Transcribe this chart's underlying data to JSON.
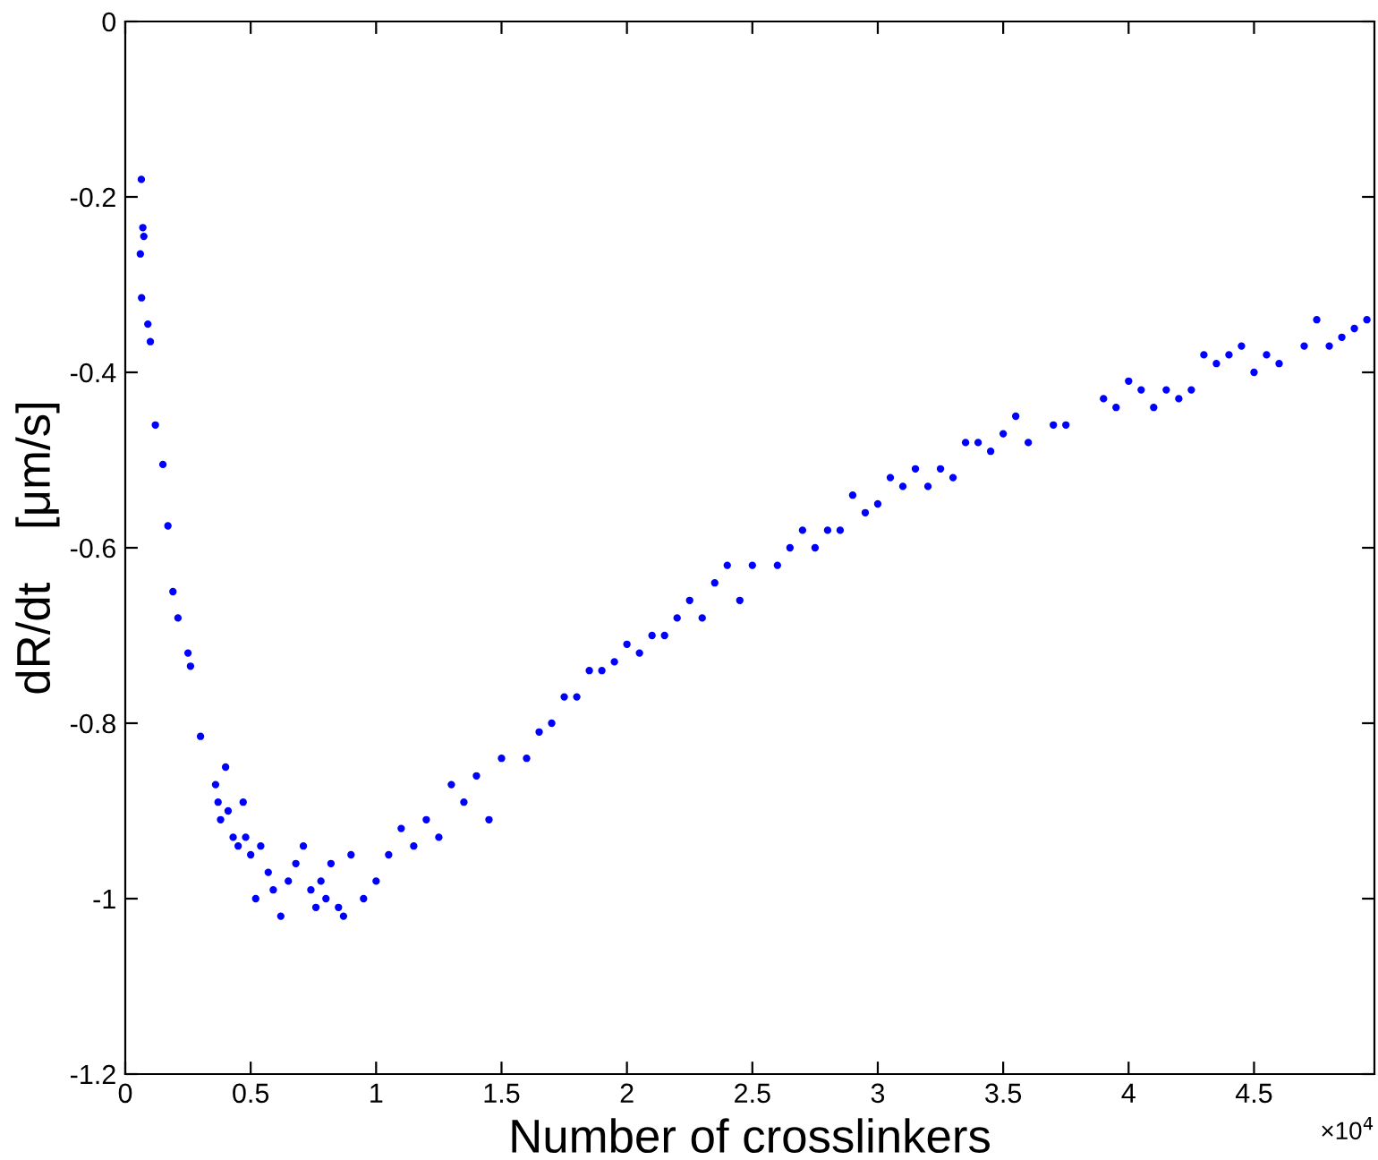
{
  "chart_data": {
    "type": "scatter",
    "xlabel": "Number of crosslinkers",
    "ylabel": "dR/dt    [μm/s]",
    "annotations": [
      "×10$^{4}$"
    ],
    "marker": "circle",
    "grid": false,
    "legend": false,
    "xlim": [
      0,
      4.98
    ],
    "ylim": [
      -1.2,
      0
    ],
    "xticks": [
      0,
      0.5,
      1,
      1.5,
      2,
      2.5,
      3,
      3.5,
      4,
      4.5
    ],
    "yticks": [
      -1.2,
      -1,
      -0.8,
      -0.6,
      -0.4,
      -0.2,
      0
    ],
    "series": [
      {
        "color": "#0000ff",
        "x": [
          0.064,
          0.07,
          0.074,
          0.06,
          0.065,
          0.09,
          0.1,
          0.12,
          0.15,
          0.17,
          0.19,
          0.21,
          0.25,
          0.26,
          0.3,
          0.36,
          0.37,
          0.38,
          0.4,
          0.41,
          0.43,
          0.45,
          0.47,
          0.48,
          0.5,
          0.52,
          0.54,
          0.57,
          0.59,
          0.62,
          0.65,
          0.68,
          0.71,
          0.74,
          0.76,
          0.78,
          0.8,
          0.82,
          0.85,
          0.87,
          0.9,
          0.95,
          1.0,
          1.05,
          1.1,
          1.15,
          1.2,
          1.25,
          1.3,
          1.35,
          1.4,
          1.45,
          1.5,
          1.6,
          1.65,
          1.7,
          1.75,
          1.8,
          1.85,
          1.9,
          1.95,
          2.0,
          2.05,
          2.1,
          2.15,
          2.2,
          2.25,
          2.3,
          2.35,
          2.4,
          2.45,
          2.5,
          2.6,
          2.65,
          2.7,
          2.75,
          2.8,
          2.85,
          2.9,
          2.95,
          3.0,
          3.05,
          3.1,
          3.15,
          3.2,
          3.25,
          3.3,
          3.35,
          3.4,
          3.45,
          3.5,
          3.55,
          3.6,
          3.7,
          3.75,
          3.9,
          3.95,
          4.0,
          4.05,
          4.1,
          4.15,
          4.2,
          4.25,
          4.3,
          4.35,
          4.4,
          4.45,
          4.5,
          4.55,
          4.6,
          4.7,
          4.75,
          4.8,
          4.85,
          4.9,
          4.95
        ],
        "values": [
          -0.18,
          -0.235,
          -0.245,
          -0.265,
          -0.315,
          -0.345,
          -0.365,
          -0.46,
          -0.505,
          -0.575,
          -0.65,
          -0.68,
          -0.72,
          -0.735,
          -0.815,
          -0.87,
          -0.89,
          -0.91,
          -0.85,
          -0.9,
          -0.93,
          -0.94,
          -0.89,
          -0.93,
          -0.95,
          -1.0,
          -0.94,
          -0.97,
          -0.99,
          -1.02,
          -0.98,
          -0.96,
          -0.94,
          -0.99,
          -1.01,
          -0.98,
          -1.0,
          -0.96,
          -1.01,
          -1.02,
          -0.95,
          -1.0,
          -0.98,
          -0.95,
          -0.92,
          -0.94,
          -0.91,
          -0.93,
          -0.87,
          -0.89,
          -0.86,
          -0.91,
          -0.84,
          -0.84,
          -0.81,
          -0.8,
          -0.77,
          -0.77,
          -0.74,
          -0.74,
          -0.73,
          -0.71,
          -0.72,
          -0.7,
          -0.7,
          -0.68,
          -0.66,
          -0.68,
          -0.64,
          -0.62,
          -0.66,
          -0.62,
          -0.62,
          -0.6,
          -0.58,
          -0.6,
          -0.58,
          -0.58,
          -0.54,
          -0.56,
          -0.55,
          -0.52,
          -0.53,
          -0.51,
          -0.53,
          -0.51,
          -0.52,
          -0.48,
          -0.48,
          -0.49,
          -0.47,
          -0.45,
          -0.48,
          -0.46,
          -0.46,
          -0.43,
          -0.44,
          -0.41,
          -0.42,
          -0.44,
          -0.42,
          -0.43,
          -0.42,
          -0.38,
          -0.39,
          -0.38,
          -0.37,
          -0.4,
          -0.38,
          -0.39,
          -0.37,
          -0.34,
          -0.37,
          -0.36,
          -0.35,
          -0.34
        ]
      }
    ]
  }
}
